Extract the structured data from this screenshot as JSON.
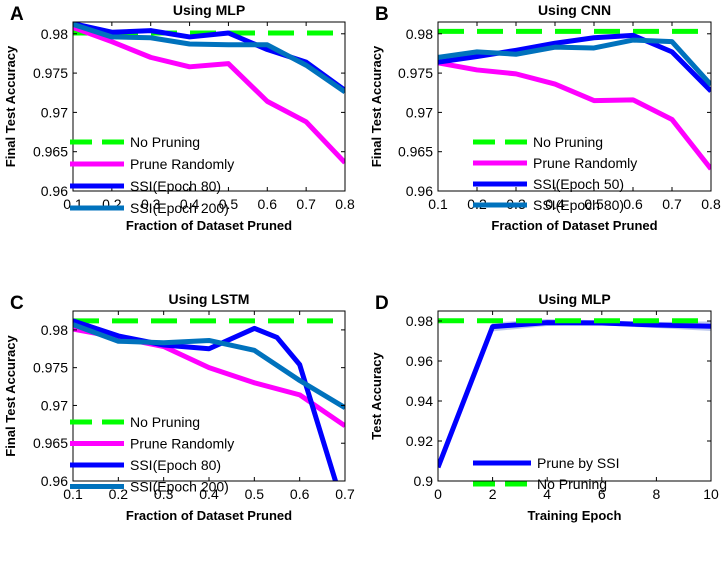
{
  "chart_data": [
    {
      "panel": "A",
      "type": "line",
      "title": "Using MLP",
      "xlabel": "Fraction of Dataset Pruned",
      "ylabel": "Final Test Accuracy",
      "xlim": [
        0.1,
        0.8
      ],
      "ylim": [
        0.96,
        0.9815
      ],
      "xticks": [
        0.1,
        0.2,
        0.3,
        0.4,
        0.5,
        0.6,
        0.7,
        0.8
      ],
      "xtick_labels": [
        "0.1",
        "0.2",
        "0.3",
        "0.4",
        "0.5",
        "0.6",
        "0.7",
        "0.8"
      ],
      "yticks": [
        0.96,
        0.965,
        0.97,
        0.975,
        0.98
      ],
      "ytick_labels": [
        "0.96",
        "0.965",
        "0.97",
        "0.975",
        "0.98"
      ],
      "legend_position": "lower-left",
      "series": [
        {
          "name": "No Pruning",
          "color": "#00ff00",
          "style": "dashed",
          "x": [
            0.1,
            0.8
          ],
          "y": [
            0.9801,
            0.9801
          ]
        },
        {
          "name": "Prune Randomly",
          "color": "#ff00ff",
          "style": "solid",
          "x": [
            0.1,
            0.2,
            0.3,
            0.4,
            0.5,
            0.6,
            0.7,
            0.8
          ],
          "y": [
            0.9808,
            0.979,
            0.977,
            0.9758,
            0.9762,
            0.9714,
            0.9688,
            0.9636
          ]
        },
        {
          "name": "SSI(Epoch 80)",
          "color": "#0000ff",
          "style": "solid",
          "x": [
            0.1,
            0.2,
            0.3,
            0.4,
            0.5,
            0.6,
            0.7,
            0.8
          ],
          "y": [
            0.9813,
            0.9802,
            0.9804,
            0.9796,
            0.9801,
            0.978,
            0.9764,
            0.9728
          ]
        },
        {
          "name": "SSI(Epoch 200)",
          "color": "#0072bd",
          "style": "solid",
          "x": [
            0.1,
            0.2,
            0.3,
            0.4,
            0.5,
            0.6,
            0.7,
            0.8
          ],
          "y": [
            0.9812,
            0.9796,
            0.9795,
            0.9787,
            0.9786,
            0.9786,
            0.976,
            0.9726
          ]
        }
      ]
    },
    {
      "panel": "B",
      "type": "line",
      "title": "Using CNN",
      "xlabel": "Fraction of Dataset Pruned",
      "ylabel": "Final Test Accuracy",
      "xlim": [
        0.1,
        0.8
      ],
      "ylim": [
        0.96,
        0.9815
      ],
      "xticks": [
        0.1,
        0.2,
        0.3,
        0.4,
        0.5,
        0.6,
        0.7,
        0.8
      ],
      "xtick_labels": [
        "0.1",
        "0.2",
        "0.3",
        "0.4",
        "0.5",
        "0.6",
        "0.7",
        "0.8"
      ],
      "yticks": [
        0.96,
        0.965,
        0.97,
        0.975,
        0.98
      ],
      "ytick_labels": [
        "0.96",
        "0.965",
        "0.97",
        "0.975",
        "0.98"
      ],
      "legend_position": "lower-left",
      "series": [
        {
          "name": "No Pruning",
          "color": "#00ff00",
          "style": "dashed",
          "x": [
            0.1,
            0.8
          ],
          "y": [
            0.9803,
            0.9803
          ]
        },
        {
          "name": "Prune Randomly",
          "color": "#ff00ff",
          "style": "solid",
          "x": [
            0.1,
            0.2,
            0.3,
            0.4,
            0.5,
            0.6,
            0.7,
            0.8
          ],
          "y": [
            0.9763,
            0.9754,
            0.9749,
            0.9736,
            0.9715,
            0.9716,
            0.9691,
            0.9628
          ]
        },
        {
          "name": "SSI(Epoch 50)",
          "color": "#0000ff",
          "style": "solid",
          "x": [
            0.1,
            0.2,
            0.3,
            0.4,
            0.5,
            0.6,
            0.7,
            0.8
          ],
          "y": [
            0.9764,
            0.9771,
            0.9779,
            0.9788,
            0.9795,
            0.9798,
            0.9777,
            0.9727
          ]
        },
        {
          "name": "SSI(Epoch 80)",
          "color": "#0072bd",
          "style": "solid",
          "x": [
            0.1,
            0.2,
            0.3,
            0.4,
            0.5,
            0.6,
            0.7,
            0.8
          ],
          "y": [
            0.977,
            0.9777,
            0.9774,
            0.9783,
            0.9782,
            0.9792,
            0.979,
            0.9735
          ]
        }
      ]
    },
    {
      "panel": "C",
      "type": "line",
      "title": "Using LSTM",
      "xlabel": "Fraction of Dataset Pruned",
      "ylabel": "Final Test Accuracy",
      "xlim": [
        0.1,
        0.7
      ],
      "ylim": [
        0.96,
        0.9825
      ],
      "xticks": [
        0.1,
        0.2,
        0.3,
        0.4,
        0.5,
        0.6,
        0.7
      ],
      "xtick_labels": [
        "0.1",
        "0.2",
        "0.3",
        "0.4",
        "0.5",
        "0.6",
        "0.7"
      ],
      "yticks": [
        0.96,
        0.965,
        0.97,
        0.975,
        0.98
      ],
      "ytick_labels": [
        "0.96",
        "0.965",
        "0.97",
        "0.975",
        "0.98"
      ],
      "legend_position": "lower-left",
      "series": [
        {
          "name": "No Pruning",
          "color": "#00ff00",
          "style": "dashed",
          "x": [
            0.1,
            0.7
          ],
          "y": [
            0.9812,
            0.9812
          ]
        },
        {
          "name": "Prune Randomly",
          "color": "#ff00ff",
          "style": "solid",
          "x": [
            0.1,
            0.2,
            0.3,
            0.4,
            0.5,
            0.6,
            0.7
          ],
          "y": [
            0.9801,
            0.979,
            0.9778,
            0.975,
            0.973,
            0.9714,
            0.9673
          ]
        },
        {
          "name": "SSI(Epoch 80)",
          "color": "#0000ff",
          "style": "solid",
          "x": [
            0.1,
            0.2,
            0.3,
            0.4,
            0.5,
            0.55,
            0.6,
            0.68
          ],
          "y": [
            0.9812,
            0.9792,
            0.978,
            0.9775,
            0.9802,
            0.979,
            0.9754,
            0.9598
          ]
        },
        {
          "name": "SSI(Epoch 200)",
          "color": "#0072bd",
          "style": "solid",
          "x": [
            0.1,
            0.2,
            0.3,
            0.4,
            0.5,
            0.6,
            0.7
          ],
          "y": [
            0.9807,
            0.9785,
            0.9783,
            0.9786,
            0.9773,
            0.9733,
            0.9697
          ]
        }
      ]
    },
    {
      "panel": "D",
      "type": "line",
      "title": "Using MLP",
      "xlabel": "Training Epoch",
      "ylabel": "Test Accuracy",
      "xlim": [
        0,
        10
      ],
      "ylim": [
        0.9,
        0.985
      ],
      "xticks": [
        0,
        2,
        4,
        6,
        8,
        10
      ],
      "xtick_labels": [
        "0",
        "2",
        "4",
        "6",
        "8",
        "10"
      ],
      "yticks": [
        0.9,
        0.92,
        0.94,
        0.96,
        0.98
      ],
      "ytick_labels": [
        "0.9",
        "0.92",
        "0.94",
        "0.96",
        "0.98"
      ],
      "legend_position": "lower-left",
      "series": [
        {
          "name": "Prune by SSI",
          "color": "#0000ff",
          "style": "solid",
          "x": [
            0,
            2,
            4,
            6,
            8,
            10
          ],
          "y": [
            0.9068,
            0.9772,
            0.9792,
            0.979,
            0.978,
            0.9774
          ],
          "band_lower": [
            0.9068,
            0.9748,
            0.9775,
            0.9778,
            0.9765,
            0.975
          ],
          "band_upper": [
            0.9068,
            0.9792,
            0.981,
            0.9803,
            0.9795,
            0.9798
          ]
        },
        {
          "name": "No Pruning",
          "color": "#00ff00",
          "style": "dashed",
          "x": [
            0,
            10
          ],
          "y": [
            0.9801,
            0.9801
          ]
        }
      ]
    }
  ]
}
